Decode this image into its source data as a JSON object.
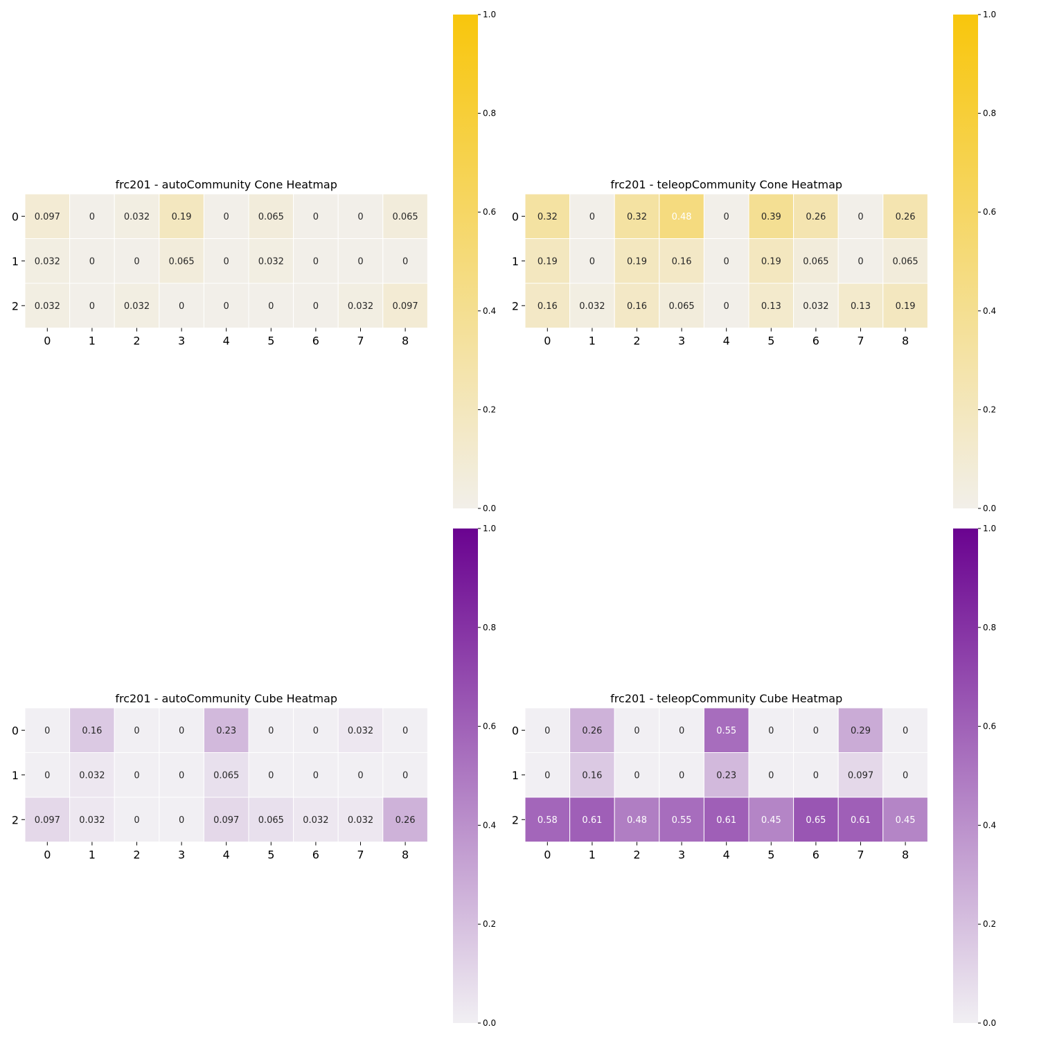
{
  "chart_data": [
    {
      "type": "heatmap",
      "title": "frc201 - autoCommunity Cone Heatmap",
      "x": [
        "0",
        "1",
        "2",
        "3",
        "4",
        "5",
        "6",
        "7",
        "8"
      ],
      "y": [
        "0",
        "1",
        "2"
      ],
      "values": [
        [
          0.097,
          0,
          0.032,
          0.19,
          0,
          0.065,
          0,
          0,
          0.065
        ],
        [
          0.032,
          0,
          0,
          0.065,
          0,
          0.032,
          0,
          0,
          0
        ],
        [
          0.032,
          0,
          0.032,
          0,
          0,
          0,
          0,
          0.032,
          0.097
        ]
      ],
      "value_labels": [
        [
          "0.097",
          "0",
          "0.032",
          "0.19",
          "0",
          "0.065",
          "0",
          "0",
          "0.065"
        ],
        [
          "0.032",
          "0",
          "0",
          "0.065",
          "0",
          "0.032",
          "0",
          "0",
          "0"
        ],
        [
          "0.032",
          "0",
          "0.032",
          "0",
          "0",
          "0",
          "0",
          "0.032",
          "0.097"
        ]
      ],
      "colorscale": {
        "low": "#f2efe9",
        "high": "#f8c60c"
      },
      "vrange": [
        0,
        1
      ],
      "colorbar_ticks": [
        "0.0",
        "0.2",
        "0.4",
        "0.6",
        "0.8",
        "1.0"
      ]
    },
    {
      "type": "heatmap",
      "title": "frc201 - teleopCommunity Cone Heatmap",
      "x": [
        "0",
        "1",
        "2",
        "3",
        "4",
        "5",
        "6",
        "7",
        "8"
      ],
      "y": [
        "0",
        "1",
        "2"
      ],
      "values": [
        [
          0.32,
          0,
          0.32,
          0.48,
          0,
          0.39,
          0.26,
          0,
          0.26
        ],
        [
          0.19,
          0,
          0.19,
          0.16,
          0,
          0.19,
          0.065,
          0,
          0.065
        ],
        [
          0.16,
          0.032,
          0.16,
          0.065,
          0,
          0.13,
          0.032,
          0.13,
          0.19
        ]
      ],
      "value_labels": [
        [
          "0.32",
          "0",
          "0.32",
          "0.48",
          "0",
          "0.39",
          "0.26",
          "0",
          "0.26"
        ],
        [
          "0.19",
          "0",
          "0.19",
          "0.16",
          "0",
          "0.19",
          "0.065",
          "0",
          "0.065"
        ],
        [
          "0.16",
          "0.032",
          "0.16",
          "0.065",
          "0",
          "0.13",
          "0.032",
          "0.13",
          "0.19"
        ]
      ],
      "colorscale": {
        "low": "#f2efe9",
        "high": "#f8c60c"
      },
      "vrange": [
        0,
        1
      ],
      "colorbar_ticks": [
        "0.0",
        "0.2",
        "0.4",
        "0.6",
        "0.8",
        "1.0"
      ]
    },
    {
      "type": "heatmap",
      "title": "frc201 - autoCommunity Cube Heatmap",
      "x": [
        "0",
        "1",
        "2",
        "3",
        "4",
        "5",
        "6",
        "7",
        "8"
      ],
      "y": [
        "0",
        "1",
        "2"
      ],
      "values": [
        [
          0,
          0.16,
          0,
          0,
          0.23,
          0,
          0,
          0.032,
          0
        ],
        [
          0,
          0.032,
          0,
          0,
          0.065,
          0,
          0,
          0,
          0
        ],
        [
          0.097,
          0.032,
          0,
          0,
          0.097,
          0.065,
          0.032,
          0.032,
          0.26
        ]
      ],
      "value_labels": [
        [
          "0",
          "0.16",
          "0",
          "0",
          "0.23",
          "0",
          "0",
          "0.032",
          "0"
        ],
        [
          "0",
          "0.032",
          "0",
          "0",
          "0.065",
          "0",
          "0",
          "0",
          "0"
        ],
        [
          "0.097",
          "0.032",
          "0",
          "0",
          "0.097",
          "0.065",
          "0.032",
          "0.032",
          "0.26"
        ]
      ],
      "colorscale": {
        "low": "#f1eff3",
        "high": "#6a0390"
      },
      "vrange": [
        0,
        1
      ],
      "colorbar_ticks": [
        "0.0",
        "0.2",
        "0.4",
        "0.6",
        "0.8",
        "1.0"
      ]
    },
    {
      "type": "heatmap",
      "title": "frc201 - teleopCommunity Cube Heatmap",
      "x": [
        "0",
        "1",
        "2",
        "3",
        "4",
        "5",
        "6",
        "7",
        "8"
      ],
      "y": [
        "0",
        "1",
        "2"
      ],
      "values": [
        [
          0,
          0.26,
          0,
          0,
          0.55,
          0,
          0,
          0.29,
          0
        ],
        [
          0,
          0.16,
          0,
          0,
          0.23,
          0,
          0,
          0.097,
          0
        ],
        [
          0.58,
          0.61,
          0.48,
          0.55,
          0.61,
          0.45,
          0.65,
          0.61,
          0.45
        ]
      ],
      "value_labels": [
        [
          "0",
          "0.26",
          "0",
          "0",
          "0.55",
          "0",
          "0",
          "0.29",
          "0"
        ],
        [
          "0",
          "0.16",
          "0",
          "0",
          "0.23",
          "0",
          "0",
          "0.097",
          "0"
        ],
        [
          "0.58",
          "0.61",
          "0.48",
          "0.55",
          "0.61",
          "0.45",
          "0.65",
          "0.61",
          "0.45"
        ]
      ],
      "colorscale": {
        "low": "#f1eff3",
        "high": "#6a0390"
      },
      "vrange": [
        0,
        1
      ],
      "colorbar_ticks": [
        "0.0",
        "0.2",
        "0.4",
        "0.6",
        "0.8",
        "1.0"
      ]
    }
  ]
}
